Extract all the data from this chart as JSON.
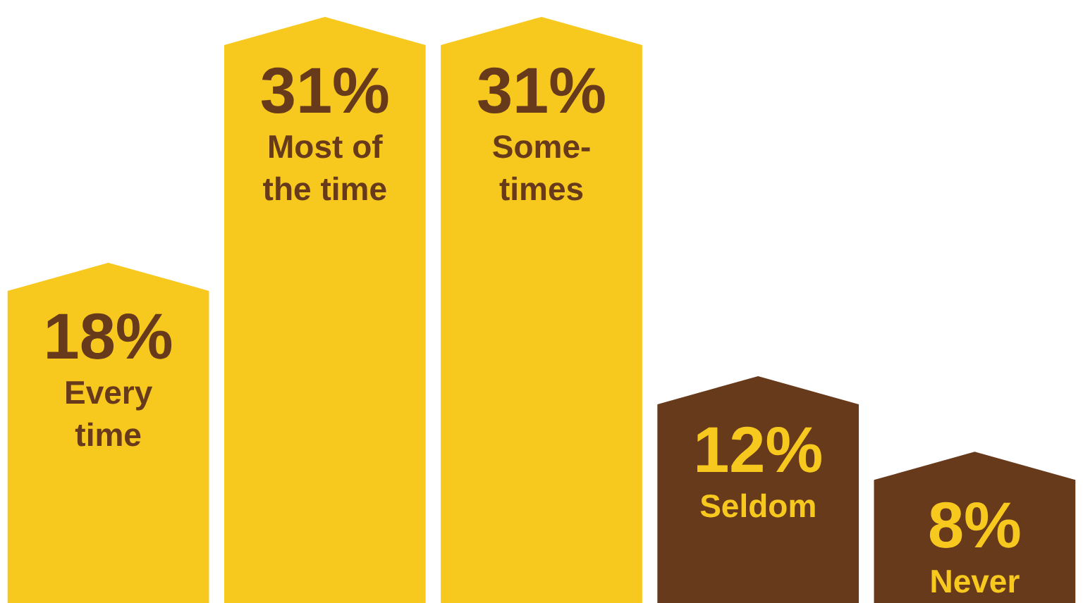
{
  "chart_data": {
    "type": "bar",
    "categories": [
      "Every time",
      "Most of the time",
      "Some-times",
      "Seldom",
      "Never"
    ],
    "values": [
      18,
      31,
      31,
      12,
      8
    ],
    "colors": [
      "#f7c81e",
      "#f7c81e",
      "#f7c81e",
      "#673a1c",
      "#673a1c"
    ],
    "value_labels": [
      "18%",
      "31%",
      "31%",
      "12%",
      "8%"
    ]
  }
}
